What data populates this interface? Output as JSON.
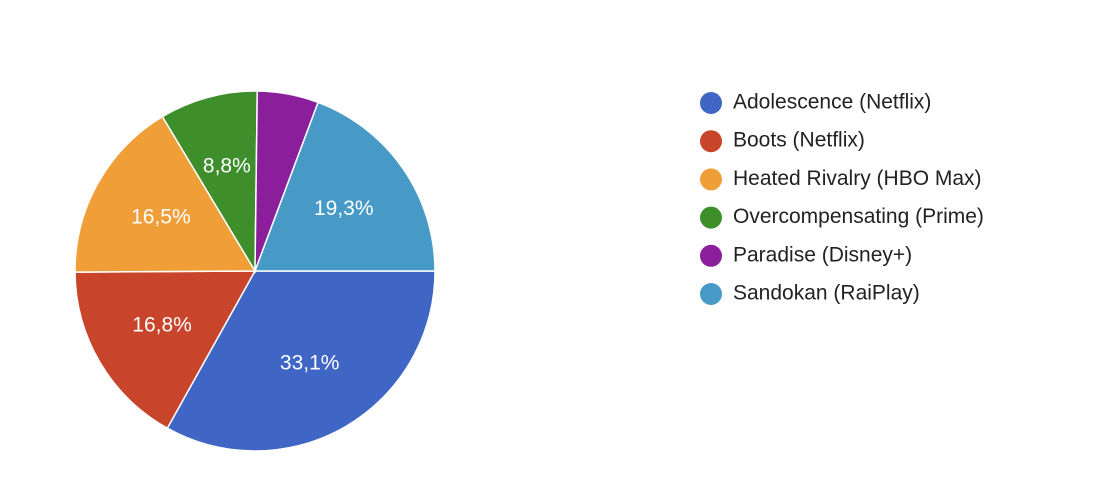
{
  "chart_data": {
    "type": "pie",
    "categories": [
      "Adolescence (Netflix)",
      "Boots (Netflix)",
      "Heated Rivalry (HBO Max)",
      "Overcompensating (Prime)",
      "Paradise (Disney+)",
      "Sandokan (RaiPlay)"
    ],
    "values": [
      33.1,
      16.8,
      16.5,
      8.8,
      5.5,
      19.3
    ],
    "value_labels": [
      "33,1%",
      "16,8%",
      "16,5%",
      "8,8%",
      null,
      "19,3%"
    ],
    "colors": [
      "#3f66c4",
      "#c8442a",
      "#f09e38",
      "#3e8f2c",
      "#8b1f9b",
      "#4799c6"
    ],
    "legend": "right"
  }
}
